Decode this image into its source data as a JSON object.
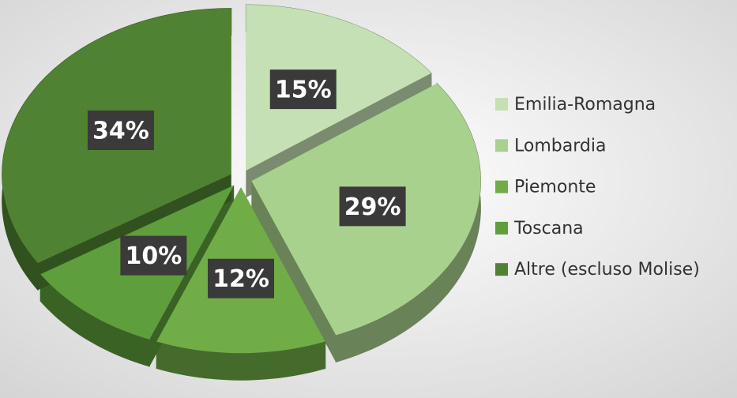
{
  "chart_data": {
    "type": "pie",
    "categories": [
      "Emilia-Romagna",
      "Lombardia",
      "Piemonte",
      "Toscana",
      "Altre (escluso Molise)"
    ],
    "values": [
      15,
      29,
      12,
      10,
      34
    ],
    "value_labels": [
      "15%",
      "29%",
      "12%",
      "10%",
      "34%"
    ],
    "colors": [
      "#c5e0b4",
      "#a9d18e",
      "#70ad47",
      "#5e9e3c",
      "#4f8232"
    ],
    "legend": "right"
  }
}
